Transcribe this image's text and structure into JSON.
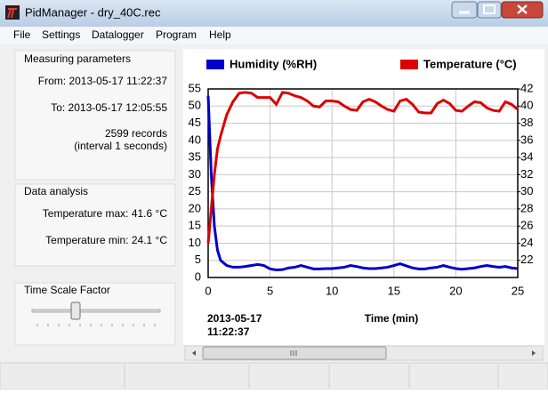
{
  "window": {
    "title": "PidManager - dry_40C.rec"
  },
  "menu": [
    "File",
    "Settings",
    "Datalogger",
    "Program",
    "Help"
  ],
  "measuring": {
    "heading": "Measuring parameters",
    "from": "From: 2013-05-17 11:22:37",
    "to": "To: 2013-05-17 12:05:55",
    "records": "2599 records",
    "interval": "(interval 1 seconds)"
  },
  "analysis": {
    "heading": "Data analysis",
    "max": "Temperature max: 41.6 °C",
    "min": "Temperature min: 24.1 °C"
  },
  "time_scale": {
    "heading": "Time Scale Factor"
  },
  "chart": {
    "type": "line",
    "x": [
      0,
      0.25,
      0.5,
      0.75,
      1,
      1.5,
      2,
      2.5,
      3,
      3.5,
      4,
      4.5,
      5,
      5.5,
      6,
      6.5,
      7,
      7.5,
      8,
      8.5,
      9,
      9.5,
      10,
      10.5,
      11,
      11.5,
      12,
      12.5,
      13,
      13.5,
      14,
      14.5,
      15,
      15.5,
      16,
      16.5,
      17,
      17.5,
      18,
      18.5,
      19,
      19.5,
      20,
      20.5,
      21,
      21.5,
      22,
      22.5,
      23,
      23.5,
      24,
      24.5,
      25
    ],
    "xlim": [
      0,
      25
    ],
    "xticks": [
      0,
      5,
      10,
      15,
      20,
      25
    ],
    "xlabel": "Time (min)",
    "start_label": [
      "2013-05-17",
      "11:22:37"
    ],
    "ylim": [
      0,
      55
    ],
    "yticks": [
      0,
      5,
      10,
      15,
      20,
      25,
      30,
      35,
      40,
      45,
      50,
      55
    ],
    "y2lim": [
      20,
      42
    ],
    "y2ticks": [
      22,
      24,
      26,
      28,
      30,
      32,
      34,
      36,
      38,
      40,
      42
    ],
    "grid": true,
    "series": [
      {
        "name": "Humidity (%RH)",
        "color": "#0000cc",
        "values": [
          53,
          30,
          15,
          8,
          5,
          3.5,
          3,
          3,
          3.2,
          3.5,
          3.8,
          3.5,
          2.5,
          2.2,
          2.3,
          2.8,
          3,
          3.5,
          3,
          2.5,
          2.5,
          2.6,
          2.6,
          2.8,
          3,
          3.5,
          3.2,
          2.8,
          2.6,
          2.6,
          2.8,
          3,
          3.5,
          4,
          3.4,
          2.8,
          2.5,
          2.5,
          2.8,
          3,
          3.5,
          3,
          2.6,
          2.4,
          2.6,
          2.8,
          3.2,
          3.5,
          3.2,
          3,
          3.2,
          2.8,
          2.6
        ]
      },
      {
        "name": "Temperature (°C)",
        "color": "#dd0000",
        "axis": "y2",
        "values": [
          24,
          28,
          32,
          35,
          36.5,
          39,
          40.5,
          41.5,
          41.6,
          41.5,
          41,
          41,
          41,
          40.2,
          41.6,
          41.5,
          41.2,
          41,
          40.6,
          40,
          39.9,
          40.6,
          40.6,
          40.5,
          40,
          39.6,
          39.5,
          40.5,
          40.8,
          40.5,
          40,
          39.6,
          39.4,
          40.6,
          40.8,
          40.2,
          39.3,
          39.2,
          39.2,
          40.3,
          40.7,
          40.3,
          39.5,
          39.4,
          40,
          40.5,
          40.4,
          39.8,
          39.5,
          39.4,
          40.5,
          40.2,
          39.6
        ]
      }
    ]
  }
}
